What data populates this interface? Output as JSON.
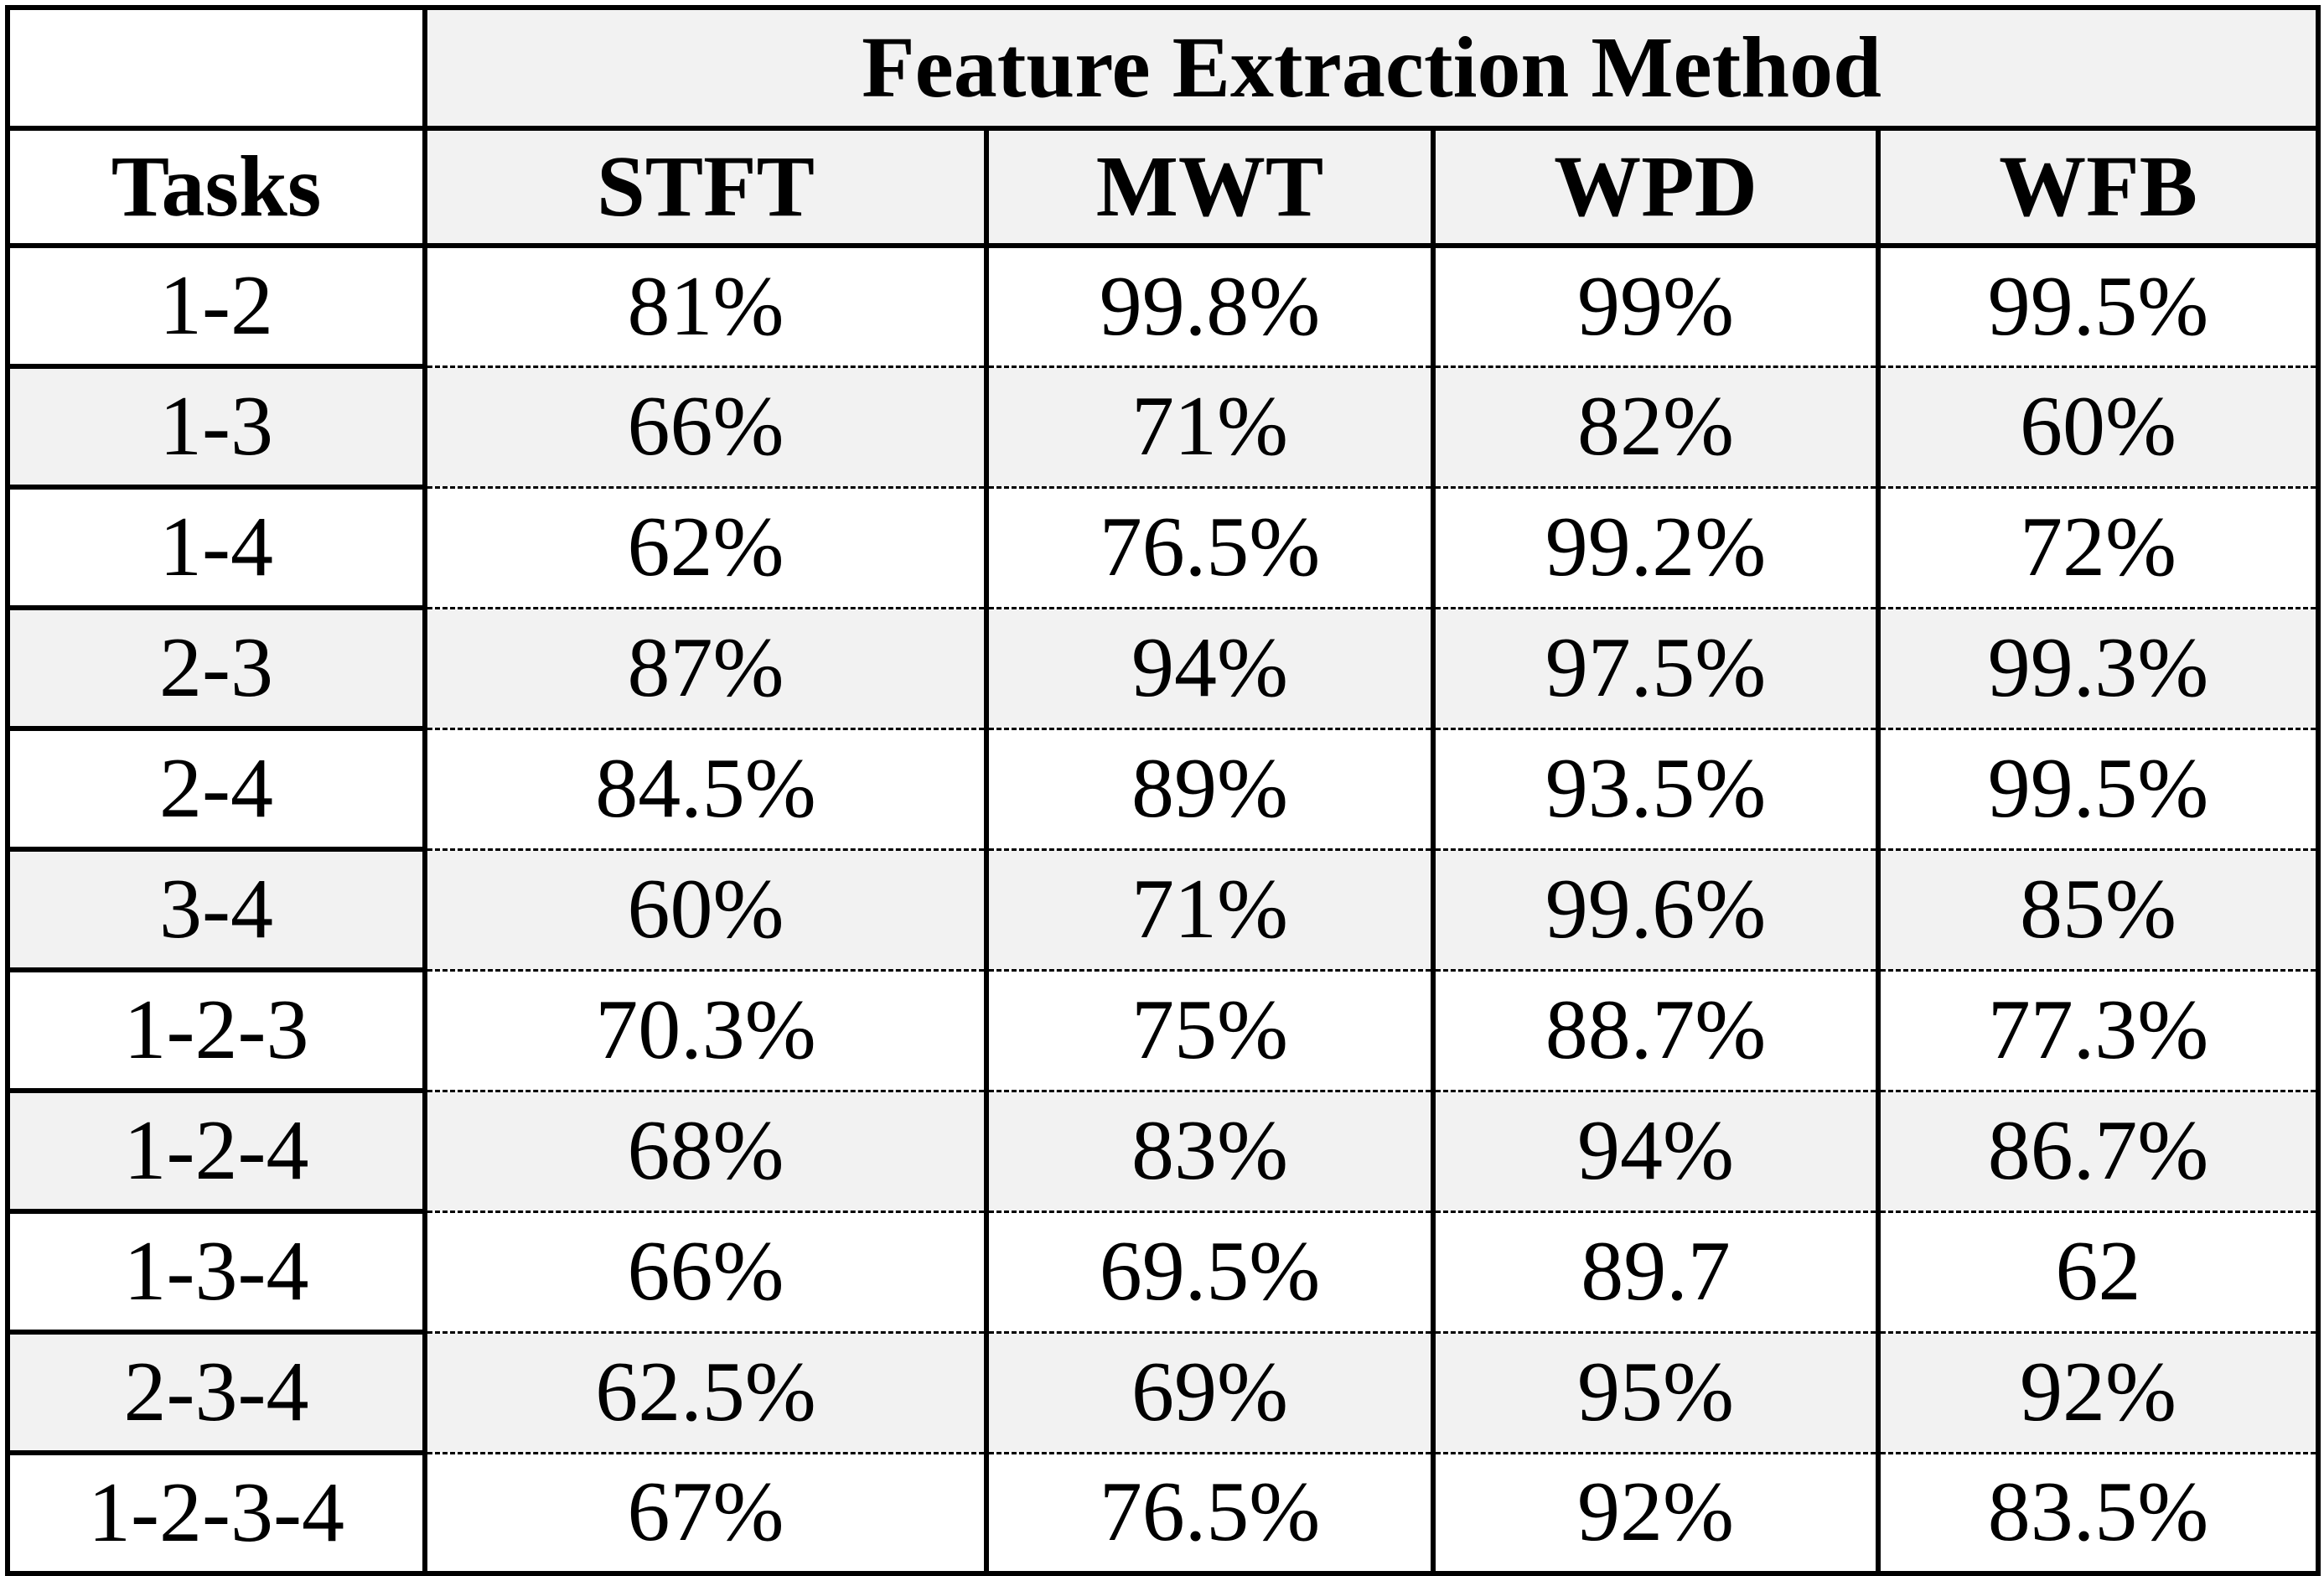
{
  "table": {
    "group_header": "Feature Extraction Method",
    "row_header": "Tasks",
    "columns": [
      "STFT",
      "MWT",
      "WPD",
      "WFB"
    ],
    "rows": [
      {
        "task": "1-2",
        "values": [
          "81%",
          "99.8%",
          "99%",
          "99.5%"
        ]
      },
      {
        "task": "1-3",
        "values": [
          "66%",
          "71%",
          "82%",
          "60%"
        ]
      },
      {
        "task": "1-4",
        "values": [
          "62%",
          "76.5%",
          "99.2%",
          "72%"
        ]
      },
      {
        "task": "2-3",
        "values": [
          "87%",
          "94%",
          "97.5%",
          "99.3%"
        ]
      },
      {
        "task": "2-4",
        "values": [
          "84.5%",
          "89%",
          "93.5%",
          "99.5%"
        ]
      },
      {
        "task": "3-4",
        "values": [
          "60%",
          "71%",
          "99.6%",
          "85%"
        ]
      },
      {
        "task": "1-2-3",
        "values": [
          "70.3%",
          "75%",
          "88.7%",
          "77.3%"
        ]
      },
      {
        "task": "1-2-4",
        "values": [
          "68%",
          "83%",
          "94%",
          "86.7%"
        ]
      },
      {
        "task": "1-3-4",
        "values": [
          "66%",
          "69.5%",
          "89.7",
          "62"
        ]
      },
      {
        "task": "2-3-4",
        "values": [
          "62.5%",
          "69%",
          "95%",
          "92%"
        ]
      },
      {
        "task": "1-2-3-4",
        "values": [
          "67%",
          "76.5%",
          "92%",
          "83.5%"
        ]
      }
    ]
  }
}
